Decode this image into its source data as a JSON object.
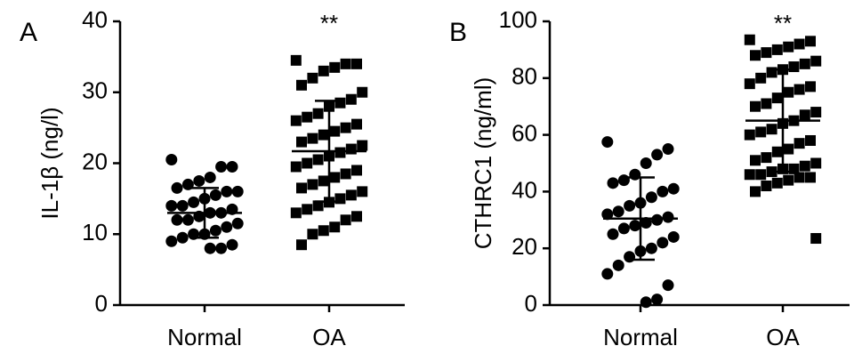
{
  "chart_data": [
    {
      "type": "dotplot",
      "panel_label": "A",
      "ylabel": "IL-1β (ng/l)",
      "categories": [
        "Normal",
        "OA"
      ],
      "annotations": [
        null,
        "**"
      ],
      "color": "#000000",
      "ylim": [
        0,
        40
      ],
      "yticks": [
        0,
        10,
        20,
        30,
        40
      ],
      "groups": [
        {
          "marker": "circle",
          "mean": 13,
          "sd": 3.5,
          "values": [
            20.5,
            19.5,
            19.5,
            18,
            17.5,
            17,
            16.5,
            16,
            16,
            15.5,
            15,
            14.5,
            14,
            14,
            13.5,
            13,
            13,
            12.5,
            12,
            12,
            11.5,
            11,
            10.5,
            10,
            10,
            9.5,
            9,
            8.5,
            8,
            8
          ]
        },
        {
          "marker": "square",
          "mean": 21.7,
          "sd": 7.1,
          "values": [
            34.5,
            34,
            34,
            33.5,
            33,
            32,
            31,
            30,
            29,
            28.5,
            28,
            27,
            26.5,
            26,
            25.5,
            25,
            24.5,
            24,
            23.5,
            23,
            22.5,
            22,
            21.5,
            21,
            20.5,
            20,
            19.5,
            19,
            18.5,
            18,
            17.5,
            17,
            16.5,
            16,
            15.5,
            15,
            14.5,
            14,
            13.5,
            13,
            12.5,
            12,
            11,
            10.5,
            10,
            8.5
          ]
        }
      ]
    },
    {
      "type": "dotplot",
      "panel_label": "B",
      "ylabel": "CTHRC1 (ng/ml)",
      "categories": [
        "Normal",
        "OA"
      ],
      "annotations": [
        null,
        "**"
      ],
      "color": "#000000",
      "ylim": [
        0,
        100
      ],
      "yticks": [
        0,
        20,
        40,
        60,
        80,
        100
      ],
      "groups": [
        {
          "marker": "circle",
          "mean": 30.5,
          "sd": 14.5,
          "values": [
            57.5,
            55,
            53,
            50,
            46,
            44,
            43,
            41,
            40,
            38,
            36,
            35,
            33,
            32,
            31,
            30,
            29,
            28,
            27,
            25,
            24,
            22,
            20,
            19,
            17,
            14,
            11,
            7,
            2,
            1
          ]
        },
        {
          "marker": "square",
          "mean": 65,
          "sd": 18,
          "values": [
            93.5,
            93,
            92,
            91,
            90,
            89,
            88,
            86,
            85,
            84,
            83,
            82,
            80,
            78,
            77,
            76,
            75,
            73,
            71,
            70,
            68,
            67,
            65,
            64,
            62,
            61,
            60,
            58,
            57,
            55,
            54,
            52,
            51,
            50,
            49,
            48,
            48,
            47,
            46,
            46,
            45,
            45,
            44,
            43,
            42,
            40,
            23.5
          ]
        }
      ]
    }
  ]
}
